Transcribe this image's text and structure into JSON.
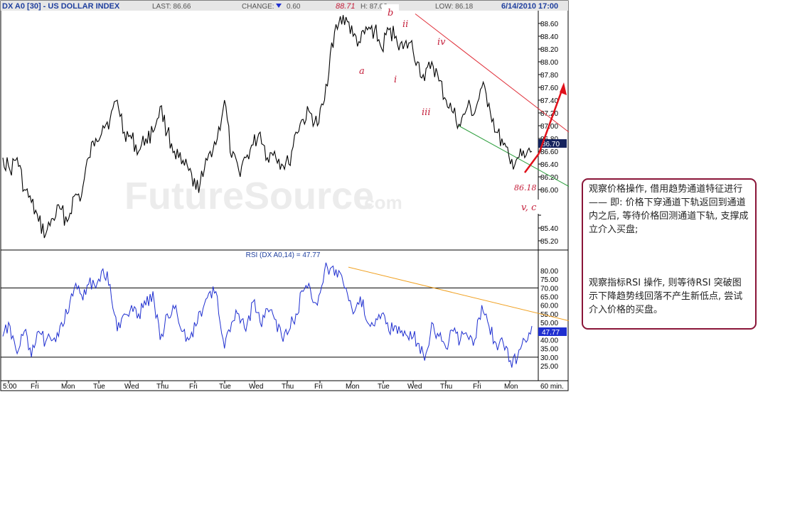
{
  "header": {
    "symbol": "DX A0 [30] - US DOLLAR INDEX",
    "last": "LAST: 86.66",
    "change_label": "CHANGE:",
    "change_value": "0.60",
    "open_high": "88.71",
    "high": "H: 87.02",
    "low": "LOW: 86.18",
    "datetime": "6/14/2010 17:00"
  },
  "watermark": {
    "main": "FutureSource",
    "suffix": ".com"
  },
  "colors": {
    "price": "#000000",
    "rsi": "#1f2fd0",
    "upper_channel": "#e0303a",
    "lower_channel": "#30a040",
    "rsi_trend": "#f0a020",
    "wave_label": "#c41e3a",
    "box_border": "#8a1538",
    "last_price_bg": "#16245e"
  },
  "rsi_title": "RSI (DX A0,14) = 47.77",
  "current_price_label": "86.70",
  "current_rsi_label": "47.77",
  "price_axis_ticks": [
    "88.60",
    "88.40",
    "88.20",
    "88.00",
    "87.80",
    "87.60",
    "87.40",
    "87.20",
    "87.00",
    "86.80",
    "86.60",
    "86.40",
    "86.20",
    "86.00",
    "",
    "85.40",
    "85.20"
  ],
  "rsi_axis_ticks": [
    "80.00",
    "75.00",
    "70.00",
    "65.00",
    "60.00",
    "55.00",
    "50.00",
    "45.00",
    "40.00",
    "35.00",
    "30.00",
    "25.00"
  ],
  "x_axis": {
    "labels": [
      "5:00",
      "Fri",
      "Mon",
      "Tue",
      "Wed",
      "Thu",
      "Fri",
      "Tue",
      "Wed",
      "Thu",
      "Fri",
      "Mon",
      "Tue",
      "Wed",
      "Thu",
      "Fri",
      "Mon"
    ],
    "interval": "60 min."
  },
  "wave_labels": {
    "a": "a",
    "b": "b",
    "i": "i",
    "ii": "ii",
    "iii": "iii",
    "iv": "iv",
    "vc": "v,  c",
    "low_value": "86.18",
    "high_value": "88.71"
  },
  "annotations": [
    "观察价格操作, 借用趋势通道特征进行—— 即: 价格下穿通道下轨返回到通道内之后, 等待价格回测通道下轨, 支撑成立介入买盘;",
    "观察指标RSI 操作, 则等待RSI 突破图示下降趋势线回落不产生新低点, 尝试介入价格的买盘。"
  ],
  "chart_data": {
    "type": "line",
    "title": "DX A0 [30] - US DOLLAR INDEX",
    "ylim": [
      85.1,
      88.8
    ],
    "rsi_ylim": [
      22,
      84
    ],
    "price_keypoints": [
      [
        0,
        86.5
      ],
      [
        1,
        86.3
      ],
      [
        2,
        86.5
      ],
      [
        3,
        86.0
      ],
      [
        4,
        85.8
      ],
      [
        5,
        85.5
      ],
      [
        6,
        85.3
      ],
      [
        7,
        85.55
      ],
      [
        8,
        85.7
      ],
      [
        9,
        85.5
      ],
      [
        10,
        85.9
      ],
      [
        11,
        85.9
      ],
      [
        12,
        86.5
      ],
      [
        13,
        86.8
      ],
      [
        14,
        87.0
      ],
      [
        15,
        87.1
      ],
      [
        16,
        87.4
      ],
      [
        17,
        86.9
      ],
      [
        18,
        86.8
      ],
      [
        19,
        86.6
      ],
      [
        20,
        86.8
      ],
      [
        21,
        86.9
      ],
      [
        22,
        87.3
      ],
      [
        23,
        86.9
      ],
      [
        24,
        86.6
      ],
      [
        25,
        86.4
      ],
      [
        26,
        86.3
      ],
      [
        27,
        86.0
      ],
      [
        28,
        86.2
      ],
      [
        29,
        86.6
      ],
      [
        30,
        86.8
      ],
      [
        31,
        87.4
      ],
      [
        32,
        86.5
      ],
      [
        33,
        86.3
      ],
      [
        34,
        86.5
      ],
      [
        35,
        86.7
      ],
      [
        36,
        86.9
      ],
      [
        37,
        86.5
      ],
      [
        38,
        86.6
      ],
      [
        39,
        86.4
      ],
      [
        40,
        86.4
      ],
      [
        41,
        86.9
      ],
      [
        42,
        87.1
      ],
      [
        43,
        87.2
      ],
      [
        44,
        87.0
      ],
      [
        45,
        87.4
      ],
      [
        46,
        88.3
      ],
      [
        47,
        88.6
      ],
      [
        48,
        88.7
      ],
      [
        49,
        88.4
      ],
      [
        50,
        88.3
      ],
      [
        51,
        88.5
      ],
      [
        52,
        88.5
      ],
      [
        53,
        88.2
      ],
      [
        54,
        88.5
      ],
      [
        55,
        88.4
      ],
      [
        56,
        88.2
      ],
      [
        57,
        88.3
      ],
      [
        58,
        88.0
      ],
      [
        59,
        87.7
      ],
      [
        60,
        88.0
      ],
      [
        61,
        87.7
      ],
      [
        62,
        87.4
      ],
      [
        63,
        87.2
      ],
      [
        64,
        87.0
      ],
      [
        65,
        87.3
      ],
      [
        66,
        87.2
      ],
      [
        67,
        87.6
      ],
      [
        68,
        87.35
      ],
      [
        69,
        86.9
      ],
      [
        70,
        86.7
      ],
      [
        71,
        86.4
      ],
      [
        72,
        86.5
      ],
      [
        73,
        86.5
      ],
      [
        74,
        86.6
      ]
    ],
    "rsi_keypoints": [
      [
        0,
        42
      ],
      [
        1,
        48
      ],
      [
        2,
        32
      ],
      [
        3,
        45
      ],
      [
        4,
        30
      ],
      [
        5,
        45
      ],
      [
        6,
        39
      ],
      [
        7,
        40
      ],
      [
        8,
        48
      ],
      [
        9,
        55
      ],
      [
        10,
        70
      ],
      [
        11,
        66
      ],
      [
        12,
        72
      ],
      [
        13,
        70
      ],
      [
        14,
        81
      ],
      [
        15,
        72
      ],
      [
        16,
        45
      ],
      [
        17,
        55
      ],
      [
        18,
        60
      ],
      [
        19,
        55
      ],
      [
        20,
        60
      ],
      [
        21,
        68
      ],
      [
        22,
        40
      ],
      [
        23,
        55
      ],
      [
        24,
        58
      ],
      [
        25,
        45
      ],
      [
        26,
        40
      ],
      [
        27,
        48
      ],
      [
        28,
        58
      ],
      [
        29,
        68
      ],
      [
        30,
        65
      ],
      [
        31,
        35
      ],
      [
        32,
        50
      ],
      [
        33,
        55
      ],
      [
        34,
        45
      ],
      [
        35,
        62
      ],
      [
        36,
        50
      ],
      [
        37,
        58
      ],
      [
        38,
        52
      ],
      [
        39,
        42
      ],
      [
        40,
        45
      ],
      [
        41,
        55
      ],
      [
        42,
        68
      ],
      [
        43,
        70
      ],
      [
        44,
        60
      ],
      [
        45,
        80
      ],
      [
        46,
        82
      ],
      [
        47,
        80
      ],
      [
        48,
        70
      ],
      [
        49,
        55
      ],
      [
        50,
        65
      ],
      [
        51,
        50
      ],
      [
        52,
        48
      ],
      [
        53,
        55
      ],
      [
        54,
        45
      ],
      [
        55,
        48
      ],
      [
        56,
        42
      ],
      [
        57,
        45
      ],
      [
        58,
        38
      ],
      [
        59,
        28
      ],
      [
        60,
        50
      ],
      [
        61,
        42
      ],
      [
        62,
        35
      ],
      [
        63,
        45
      ],
      [
        64,
        40
      ],
      [
        65,
        42
      ],
      [
        66,
        40
      ],
      [
        67,
        60
      ],
      [
        68,
        48
      ],
      [
        69,
        38
      ],
      [
        70,
        38
      ],
      [
        71,
        28
      ],
      [
        72,
        30
      ],
      [
        73,
        40
      ],
      [
        74,
        48
      ]
    ],
    "upper_channel": [
      [
        75,
        88.75
      ],
      [
        100,
        86.9
      ]
    ],
    "lower_channel": [
      [
        66,
        87.0
      ],
      [
        100,
        86.05
      ]
    ],
    "rsi_trendline": [
      [
        62,
        82
      ],
      [
        100,
        51
      ]
    ],
    "rsi_levels": [
      70,
      30
    ]
  }
}
